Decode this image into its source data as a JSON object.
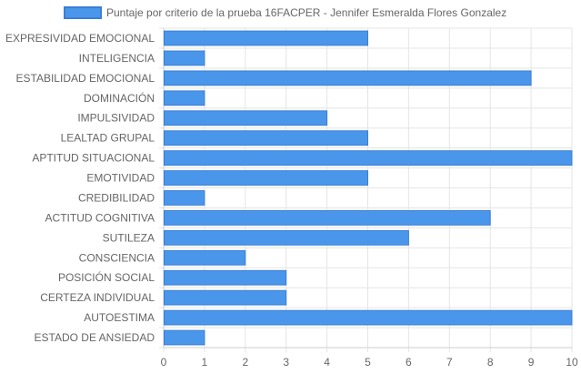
{
  "chart_data": {
    "type": "bar",
    "orientation": "horizontal",
    "legend_position": "top",
    "grid": true,
    "series": [
      {
        "name": "Puntaje por criterio de la prueba 16FACPER - Jennifer Esmeralda Flores Gonzalez",
        "color": "#4a96ea",
        "border_color": "#3a7fd5",
        "values": [
          5,
          1,
          9,
          1,
          4,
          5,
          10,
          5,
          1,
          8,
          6,
          2,
          3,
          3,
          10,
          1
        ]
      }
    ],
    "categories": [
      "EXPRESIVIDAD EMOCIONAL",
      "INTELIGENCIA",
      "ESTABILIDAD EMOCIONAL",
      "DOMINACIÓN",
      "IMPULSIVIDAD",
      "LEALTAD GRUPAL",
      "APTITUD SITUACIONAL",
      "EMOTIVIDAD",
      "CREDIBILIDAD",
      "ACTITUD COGNITIVA",
      "SUTILEZA",
      "CONSCIENCIA",
      "POSICIÓN SOCIAL",
      "CERTEZA INDIVIDUAL",
      "AUTOESTIMA",
      "ESTADO DE ANSIEDAD"
    ],
    "xlim": [
      0,
      10
    ],
    "x_ticks": [
      "0",
      "1",
      "2",
      "3",
      "4",
      "5",
      "6",
      "7",
      "8",
      "9",
      "10"
    ],
    "gridline_color": "#e5e5e5"
  }
}
